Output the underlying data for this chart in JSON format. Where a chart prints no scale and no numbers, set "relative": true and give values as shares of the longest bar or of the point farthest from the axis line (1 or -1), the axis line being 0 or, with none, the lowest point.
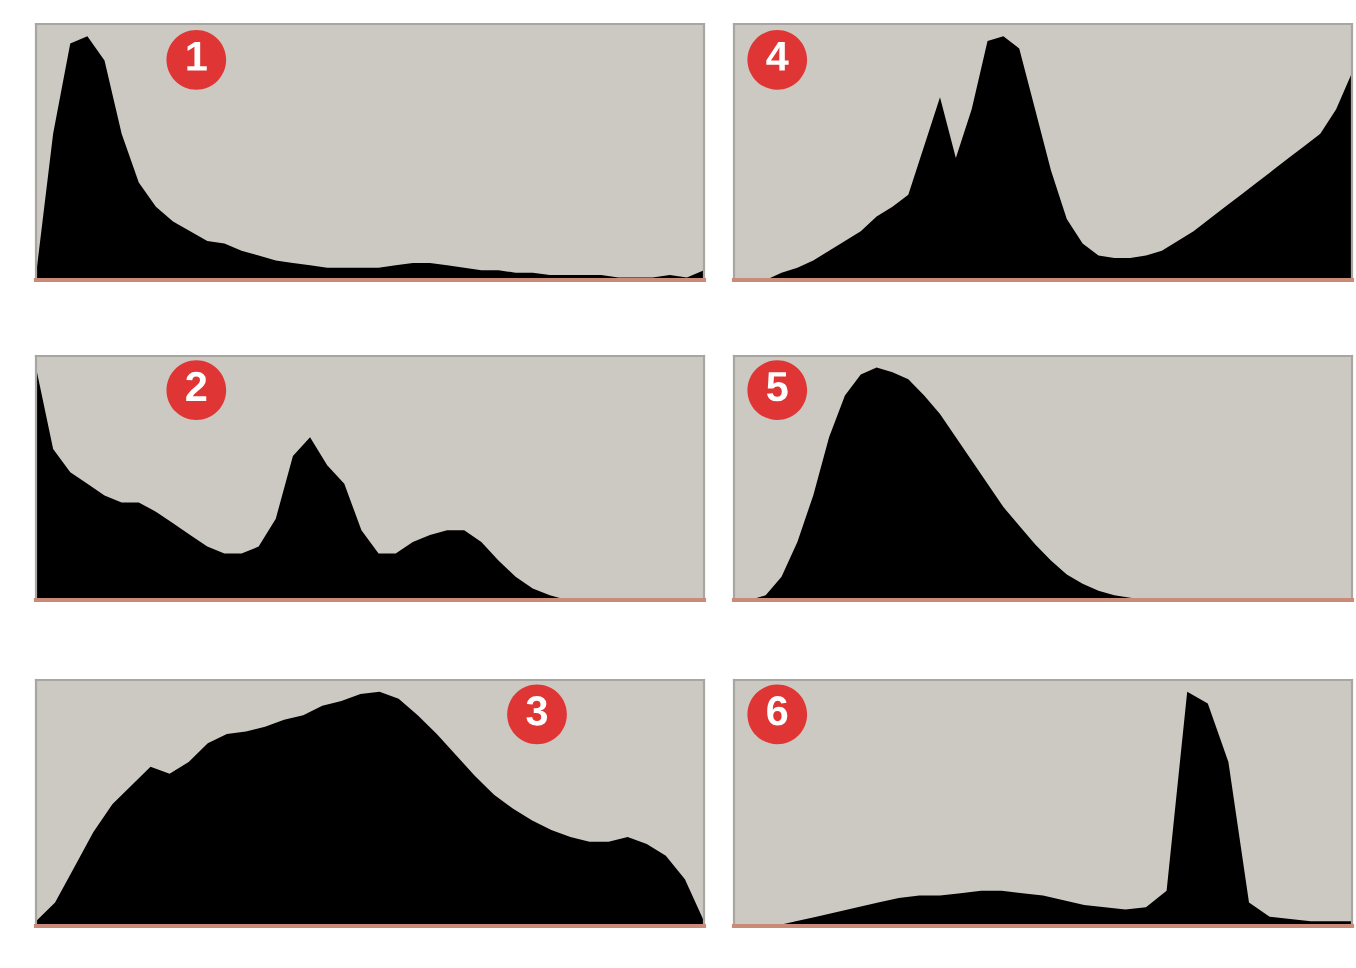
{
  "chart_data": [
    {
      "type": "area",
      "title": "1",
      "relative": true,
      "categories": [
        null,
        null,
        null,
        null,
        null,
        null,
        null,
        null,
        null,
        null,
        null,
        null,
        null,
        null,
        null,
        null,
        null,
        null,
        null,
        null,
        null,
        null,
        null,
        null,
        null,
        null,
        null,
        null,
        null,
        null,
        null,
        null,
        null,
        null,
        null,
        null,
        null,
        null,
        null,
        null
      ],
      "color": "#000000",
      "values": [
        0.02,
        0.6,
        0.97,
        1.0,
        0.9,
        0.6,
        0.4,
        0.3,
        0.24,
        0.2,
        0.16,
        0.15,
        0.12,
        0.1,
        0.08,
        0.07,
        0.06,
        0.05,
        0.05,
        0.05,
        0.05,
        0.06,
        0.07,
        0.07,
        0.06,
        0.05,
        0.04,
        0.04,
        0.03,
        0.03,
        0.02,
        0.02,
        0.02,
        0.02,
        0.01,
        0.01,
        0.01,
        0.02,
        0.01,
        0.04
      ]
    },
    {
      "type": "area",
      "title": "4",
      "relative": true,
      "categories": [
        null,
        null,
        null,
        null,
        null,
        null,
        null,
        null,
        null,
        null,
        null,
        null,
        null,
        null,
        null,
        null,
        null,
        null,
        null,
        null,
        null,
        null,
        null,
        null,
        null,
        null,
        null,
        null,
        null,
        null,
        null,
        null,
        null,
        null,
        null,
        null,
        null,
        null,
        null,
        null
      ],
      "color": "#000000",
      "values": [
        0,
        0,
        0,
        0.03,
        0.05,
        0.08,
        0.12,
        0.16,
        0.2,
        0.26,
        0.3,
        0.35,
        0.55,
        0.75,
        0.5,
        0.7,
        0.98,
        1.0,
        0.95,
        0.7,
        0.45,
        0.25,
        0.15,
        0.1,
        0.09,
        0.09,
        0.1,
        0.12,
        0.16,
        0.2,
        0.25,
        0.3,
        0.35,
        0.4,
        0.45,
        0.5,
        0.55,
        0.6,
        0.7,
        0.85
      ]
    },
    {
      "type": "area",
      "title": "2",
      "relative": true,
      "categories": [
        null,
        null,
        null,
        null,
        null,
        null,
        null,
        null,
        null,
        null,
        null,
        null,
        null,
        null,
        null,
        null,
        null,
        null,
        null,
        null,
        null,
        null,
        null,
        null,
        null,
        null,
        null,
        null,
        null,
        null,
        null,
        null,
        null,
        null,
        null,
        null,
        null,
        null,
        null,
        null
      ],
      "color": "#000000",
      "values": [
        1.0,
        0.65,
        0.55,
        0.5,
        0.45,
        0.42,
        0.42,
        0.38,
        0.33,
        0.28,
        0.23,
        0.2,
        0.2,
        0.23,
        0.35,
        0.62,
        0.7,
        0.58,
        0.5,
        0.3,
        0.2,
        0.2,
        0.25,
        0.28,
        0.3,
        0.3,
        0.25,
        0.17,
        0.1,
        0.05,
        0.02,
        0,
        0,
        0,
        0,
        0,
        0,
        0,
        0,
        0
      ]
    },
    {
      "type": "area",
      "title": "5",
      "relative": true,
      "categories": [
        null,
        null,
        null,
        null,
        null,
        null,
        null,
        null,
        null,
        null,
        null,
        null,
        null,
        null,
        null,
        null,
        null,
        null,
        null,
        null,
        null,
        null,
        null,
        null,
        null,
        null,
        null,
        null,
        null,
        null,
        null,
        null,
        null,
        null,
        null,
        null,
        null,
        null,
        null,
        null
      ],
      "color": "#000000",
      "values": [
        0,
        0,
        0.02,
        0.1,
        0.25,
        0.45,
        0.7,
        0.88,
        0.97,
        1.0,
        0.98,
        0.95,
        0.88,
        0.8,
        0.7,
        0.6,
        0.5,
        0.4,
        0.32,
        0.24,
        0.17,
        0.11,
        0.07,
        0.04,
        0.02,
        0.01,
        0,
        0,
        0,
        0,
        0,
        0,
        0,
        0,
        0,
        0,
        0,
        0,
        0,
        0
      ]
    },
    {
      "type": "area",
      "title": "3",
      "relative": true,
      "categories": [
        null,
        null,
        null,
        null,
        null,
        null,
        null,
        null,
        null,
        null,
        null,
        null,
        null,
        null,
        null,
        null,
        null,
        null,
        null,
        null,
        null,
        null,
        null,
        null,
        null,
        null,
        null,
        null,
        null,
        null,
        null,
        null,
        null,
        null,
        null,
        null
      ],
      "color": "#000000",
      "values": [
        0.02,
        0.1,
        0.25,
        0.4,
        0.52,
        0.6,
        0.68,
        0.65,
        0.7,
        0.78,
        0.82,
        0.83,
        0.85,
        0.88,
        0.9,
        0.94,
        0.96,
        0.99,
        1.0,
        0.97,
        0.9,
        0.82,
        0.73,
        0.64,
        0.56,
        0.5,
        0.45,
        0.41,
        0.38,
        0.36,
        0.36,
        0.38,
        0.35,
        0.3,
        0.2,
        0.02
      ]
    },
    {
      "type": "area",
      "title": "6",
      "relative": true,
      "categories": [
        null,
        null,
        null,
        null,
        null,
        null,
        null,
        null,
        null,
        null,
        null,
        null,
        null,
        null,
        null,
        null,
        null,
        null,
        null,
        null,
        null,
        null,
        null,
        null,
        null,
        null,
        null,
        null,
        null,
        null,
        null
      ],
      "color": "#000000",
      "values": [
        0,
        0,
        0,
        0.02,
        0.04,
        0.06,
        0.08,
        0.1,
        0.12,
        0.13,
        0.13,
        0.14,
        0.15,
        0.15,
        0.14,
        0.13,
        0.11,
        0.09,
        0.08,
        0.07,
        0.08,
        0.15,
        1.0,
        0.95,
        0.7,
        0.1,
        0.04,
        0.03,
        0.02,
        0.02,
        0.02
      ]
    }
  ]
}
